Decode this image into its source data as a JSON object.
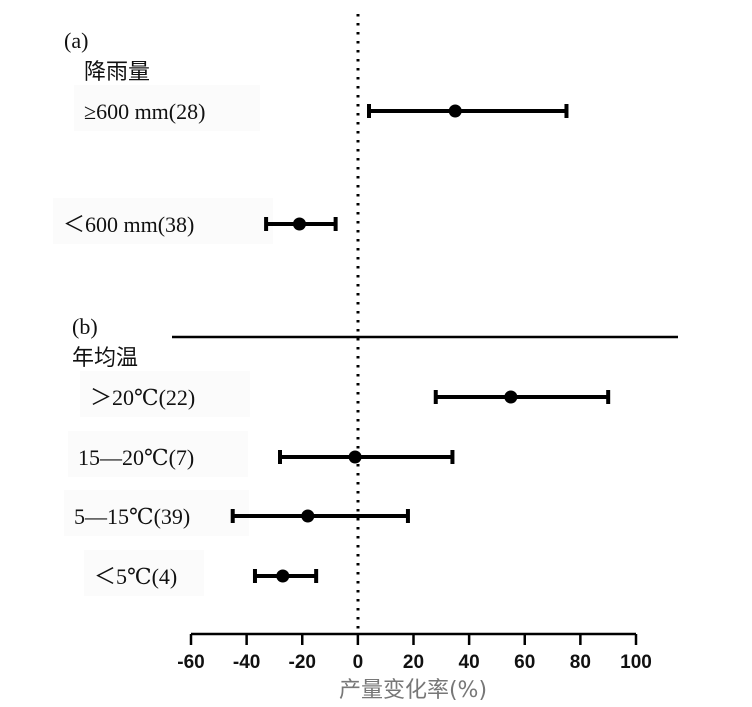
{
  "chart_data": {
    "type": "forest",
    "xlabel": "产量变化率(%)",
    "xlim": [
      -60,
      100
    ],
    "xticks": [
      -60,
      -40,
      -20,
      0,
      20,
      40,
      60,
      80,
      100
    ],
    "reference_line": 0,
    "colors": {
      "ink": "#000000",
      "label_bg": "#fbfbfb"
    },
    "panels": [
      {
        "tag": "(a)",
        "group": "降雨量",
        "rows": [
          {
            "label": "≥600 mm(28)",
            "mean": 35,
            "lower": 4,
            "upper": 75
          },
          {
            "label": "＜600 mm(38)",
            "mean": -21,
            "lower": -33,
            "upper": -8
          }
        ]
      },
      {
        "tag": "(b)",
        "group": "年均温",
        "rows": [
          {
            "label": "＞20℃(22)",
            "mean": 55,
            "lower": 28,
            "upper": 90
          },
          {
            "label": "15—20℃(7)",
            "mean": -1,
            "lower": -28,
            "upper": 34
          },
          {
            "label": "5—15℃(39)",
            "mean": -18,
            "lower": -45,
            "upper": 18
          },
          {
            "label": "＜5℃(4)",
            "mean": -27,
            "lower": -37,
            "upper": -15
          }
        ]
      }
    ]
  }
}
